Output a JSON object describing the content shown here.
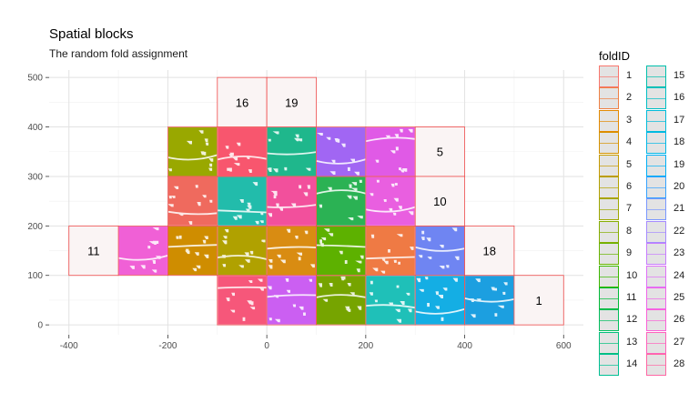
{
  "chart_data": {
    "type": "spatial-blocks",
    "title": "Spatial blocks",
    "subtitle": "The random fold assignment",
    "xlim": [
      -440,
      640
    ],
    "ylim": [
      -20,
      515
    ],
    "x_ticks": [
      -400,
      -200,
      0,
      200,
      400,
      600
    ],
    "y_ticks": [
      0,
      100,
      200,
      300,
      400,
      500
    ],
    "x_tick_labels": [
      "-400",
      "-200",
      "0",
      "200",
      "400",
      "600"
    ],
    "y_tick_labels": [
      "0",
      "100",
      "200",
      "300",
      "400",
      "500"
    ],
    "grid": true,
    "block_size": 100,
    "legend": {
      "title": "foldID",
      "position": "right",
      "columns": [
        [
          "1",
          "2",
          "3",
          "4",
          "5",
          "6",
          "7",
          "8",
          "9",
          "10",
          "11",
          "12",
          "13",
          "14"
        ],
        [
          "15",
          "16",
          "17",
          "18",
          "19",
          "20",
          "21",
          "22",
          "23",
          "24",
          "25",
          "26",
          "27",
          "28"
        ]
      ]
    },
    "empty_blocks": [
      {
        "fold": "16",
        "x": -100,
        "y": 400
      },
      {
        "fold": "19",
        "x": 0,
        "y": 400
      },
      {
        "fold": "5",
        "x": 300,
        "y": 300
      },
      {
        "fold": "10",
        "x": 300,
        "y": 200
      },
      {
        "fold": "11",
        "x": -400,
        "y": 100
      },
      {
        "fold": "18",
        "x": 400,
        "y": 100
      },
      {
        "fold": "1",
        "x": 500,
        "y": 0
      }
    ],
    "point_blocks": [
      {
        "x": -200,
        "y": 300,
        "color": "#99a800"
      },
      {
        "x": -100,
        "y": 300,
        "color": "#f8566e"
      },
      {
        "x": 0,
        "y": 300,
        "color": "#1fb78c"
      },
      {
        "x": 100,
        "y": 300,
        "color": "#a166f3"
      },
      {
        "x": 200,
        "y": 300,
        "color": "#e05ae6"
      },
      {
        "x": -200,
        "y": 200,
        "color": "#ef6a5e"
      },
      {
        "x": -100,
        "y": 200,
        "color": "#22bcab"
      },
      {
        "x": 0,
        "y": 200,
        "color": "#f2509c"
      },
      {
        "x": 100,
        "y": 200,
        "color": "#2bb254"
      },
      {
        "x": 200,
        "y": 200,
        "color": "#e95fe0"
      },
      {
        "x": -300,
        "y": 100,
        "color": "#f060d6"
      },
      {
        "x": -200,
        "y": 100,
        "color": "#cf8d00"
      },
      {
        "x": -100,
        "y": 100,
        "color": "#b0a100"
      },
      {
        "x": 0,
        "y": 100,
        "color": "#d98c12"
      },
      {
        "x": 100,
        "y": 100,
        "color": "#5db100"
      },
      {
        "x": 200,
        "y": 100,
        "color": "#ef7a44"
      },
      {
        "x": 300,
        "y": 100,
        "color": "#6f85f2"
      },
      {
        "x": -100,
        "y": 0,
        "color": "#f6577a"
      },
      {
        "x": 0,
        "y": 0,
        "color": "#cb5ff2"
      },
      {
        "x": 100,
        "y": 0,
        "color": "#76a400"
      },
      {
        "x": 200,
        "y": 0,
        "color": "#1fc0b8"
      },
      {
        "x": 300,
        "y": 0,
        "color": "#14aee4"
      },
      {
        "x": 400,
        "y": 0,
        "color": "#1c9fe0"
      }
    ]
  }
}
